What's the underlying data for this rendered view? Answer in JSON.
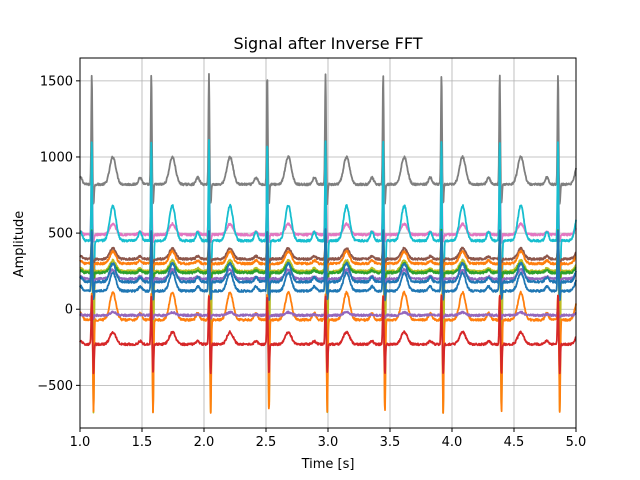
{
  "chart_data": {
    "type": "line",
    "title": "Signal after Inverse FFT",
    "xlabel": "Time [s]",
    "ylabel": "Amplitude",
    "xlim": [
      1.0,
      5.0
    ],
    "ylim": [
      -780,
      1650
    ],
    "xticks": [
      1.0,
      1.5,
      2.0,
      2.5,
      3.0,
      3.5,
      4.0,
      4.5,
      5.0
    ],
    "xtick_labels": [
      "1.0",
      "1.5",
      "2.0",
      "2.5",
      "3.0",
      "3.5",
      "4.0",
      "4.5",
      "5.0"
    ],
    "yticks": [
      -500,
      0,
      500,
      1000,
      1500
    ],
    "ytick_labels": [
      "−500",
      "0",
      "500",
      "1000",
      "1500"
    ],
    "grid": true,
    "legend": "none",
    "beat_times": [
      1.095,
      1.575,
      2.04,
      2.51,
      2.98,
      3.445,
      3.915,
      4.385,
      4.855
    ],
    "series": [
      {
        "color": "#7f7f7f",
        "baseline": 820,
        "r_peak": 1540,
        "t_wave": 1000,
        "trough": 690
      },
      {
        "color": "#e377c2",
        "baseline": 490,
        "r_peak": 1000,
        "t_wave": 560,
        "trough": 440
      },
      {
        "color": "#17becf",
        "baseline": 450,
        "r_peak": 1110,
        "t_wave": 680,
        "trough": -590
      },
      {
        "color": "#8c564b",
        "baseline": 330,
        "r_peak": 480,
        "t_wave": 400,
        "trough": 270
      },
      {
        "color": "#ff7f0e",
        "baseline": 300,
        "r_peak": 420,
        "t_wave": 380,
        "trough": 250
      },
      {
        "color": "#bcbd22",
        "baseline": 250,
        "r_peak": 400,
        "t_wave": 320,
        "trough": -680
      },
      {
        "color": "#2ca02c",
        "baseline": 240,
        "r_peak": 520,
        "t_wave": 300,
        "trough": 180
      },
      {
        "color": "#9467bd",
        "baseline": 200,
        "r_peak": 320,
        "t_wave": 260,
        "trough": 150
      },
      {
        "color": "#1f77b4",
        "baseline": 180,
        "r_peak": 520,
        "t_wave": 300,
        "trough": 100
      },
      {
        "color": "#1f77b4",
        "baseline": 120,
        "r_peak": 480,
        "t_wave": 240,
        "trough": 60
      },
      {
        "color": "#ff7f0e",
        "baseline": -70,
        "r_peak": 100,
        "t_wave": 110,
        "trough": -680
      },
      {
        "color": "#9467bd",
        "baseline": -40,
        "r_peak": 10,
        "t_wave": -20,
        "trough": -60
      },
      {
        "color": "#d62728",
        "baseline": -230,
        "r_peak": 90,
        "t_wave": -150,
        "trough": -420
      }
    ]
  }
}
